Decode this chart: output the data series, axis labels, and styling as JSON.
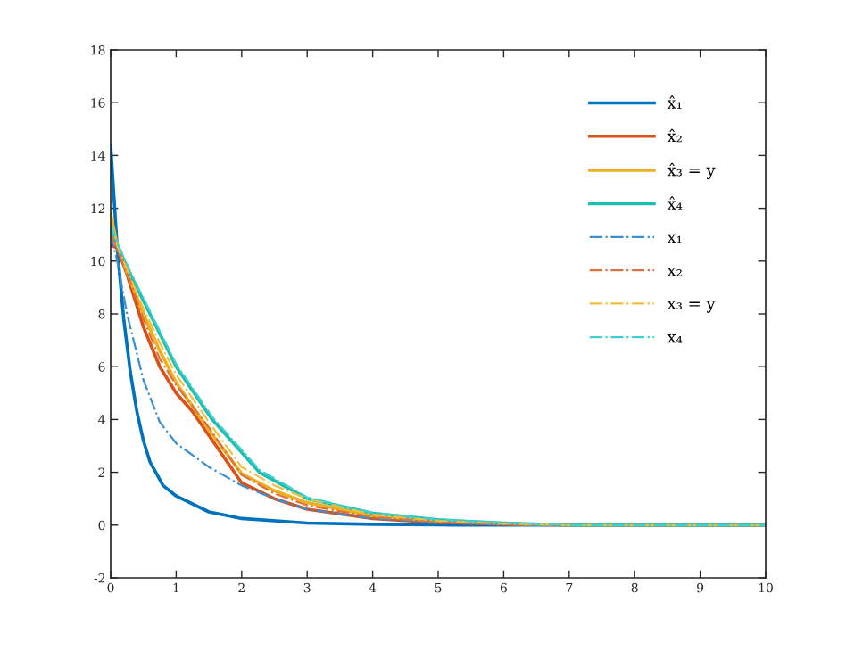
{
  "chart_data": {
    "type": "line",
    "xlim": [
      0,
      10
    ],
    "ylim": [
      -2,
      18
    ],
    "xticks": [
      0,
      1,
      2,
      3,
      4,
      5,
      6,
      7,
      8,
      9,
      10
    ],
    "yticks": [
      -2,
      0,
      2,
      4,
      6,
      8,
      10,
      12,
      14,
      16,
      18
    ],
    "grid": false,
    "legend": "top right",
    "series": [
      {
        "name": "x̂₁",
        "color": "#0072bd",
        "line_style": "solid",
        "x": [
          0,
          0.1,
          0.2,
          0.3,
          0.4,
          0.5,
          0.6,
          0.8,
          1,
          1.5,
          2,
          3,
          4,
          5,
          6,
          10
        ],
        "values": [
          14.4,
          10.5,
          7.8,
          5.8,
          4.3,
          3.2,
          2.4,
          1.5,
          1.1,
          0.5,
          0.25,
          0.08,
          0.03,
          0.01,
          0,
          0
        ]
      },
      {
        "name": "x̂₂",
        "color": "#d95319",
        "line_style": "solid",
        "x": [
          0,
          0.1,
          0.25,
          0.5,
          0.75,
          1,
          1.25,
          1.5,
          2,
          2.5,
          3,
          4,
          5,
          6,
          7,
          10
        ],
        "values": [
          10.6,
          10.5,
          9.5,
          7.5,
          6.0,
          5.0,
          4.3,
          3.4,
          1.6,
          1.0,
          0.6,
          0.25,
          0.1,
          0.04,
          0,
          0
        ]
      },
      {
        "name": "x̂₃ = y",
        "color": "#edb120",
        "line_style": "solid",
        "x": [
          0,
          0.1,
          0.25,
          0.5,
          0.75,
          1,
          1.5,
          2,
          2.5,
          3,
          4,
          5,
          6,
          7,
          10
        ],
        "values": [
          11.8,
          10.6,
          9.6,
          8.0,
          6.6,
          5.4,
          3.6,
          1.95,
          1.3,
          0.85,
          0.35,
          0.15,
          0.05,
          0,
          0
        ]
      },
      {
        "name": "x̂₄",
        "color": "#1fbfb0",
        "line_style": "solid",
        "x": [
          0,
          0.1,
          0.3,
          0.6,
          1,
          1.55,
          2.27,
          3,
          4,
          5,
          6,
          7,
          10
        ],
        "values": [
          11.2,
          10.6,
          9.5,
          8.0,
          6.0,
          4.0,
          2.0,
          1.0,
          0.45,
          0.2,
          0.08,
          0,
          0
        ]
      },
      {
        "name": "x₁",
        "color": "#3b8fd0",
        "line_style": "dashdot",
        "x": [
          0,
          0.1,
          0.25,
          0.5,
          0.75,
          1,
          1.5,
          2,
          2.5,
          3,
          4,
          5,
          6,
          7,
          10
        ],
        "values": [
          11,
          10,
          8,
          5.5,
          3.9,
          3.1,
          2.2,
          1.5,
          1.0,
          0.6,
          0.25,
          0.1,
          0.03,
          0,
          0
        ]
      },
      {
        "name": "x₂",
        "color": "#e0713f",
        "line_style": "dashdot",
        "x": [
          0,
          0.1,
          0.25,
          0.5,
          0.75,
          1,
          1.5,
          2,
          2.5,
          3,
          4,
          5,
          6,
          7,
          10
        ],
        "values": [
          11.0,
          10.5,
          9.6,
          7.8,
          6.3,
          5.3,
          3.7,
          1.9,
          1.2,
          0.75,
          0.3,
          0.12,
          0.04,
          0,
          0
        ]
      },
      {
        "name": "x₃ = y",
        "color": "#f0c040",
        "line_style": "dashdot",
        "x": [
          0,
          0.1,
          0.25,
          0.5,
          0.75,
          1,
          1.5,
          2,
          2.5,
          3,
          4,
          5,
          6,
          7,
          10
        ],
        "values": [
          11.5,
          10.6,
          9.7,
          8.2,
          6.9,
          5.7,
          3.9,
          2.2,
          1.5,
          1.0,
          0.4,
          0.17,
          0.06,
          0,
          0
        ]
      },
      {
        "name": "x₄",
        "color": "#40d0d0",
        "line_style": "dashdot",
        "x": [
          0,
          0.1,
          0.3,
          0.6,
          1,
          1.55,
          2.27,
          3,
          4,
          5,
          6,
          7,
          10
        ],
        "values": [
          11.4,
          10.7,
          9.6,
          8.1,
          6.1,
          4.1,
          2.1,
          1.05,
          0.47,
          0.21,
          0.09,
          0,
          0
        ]
      }
    ]
  }
}
